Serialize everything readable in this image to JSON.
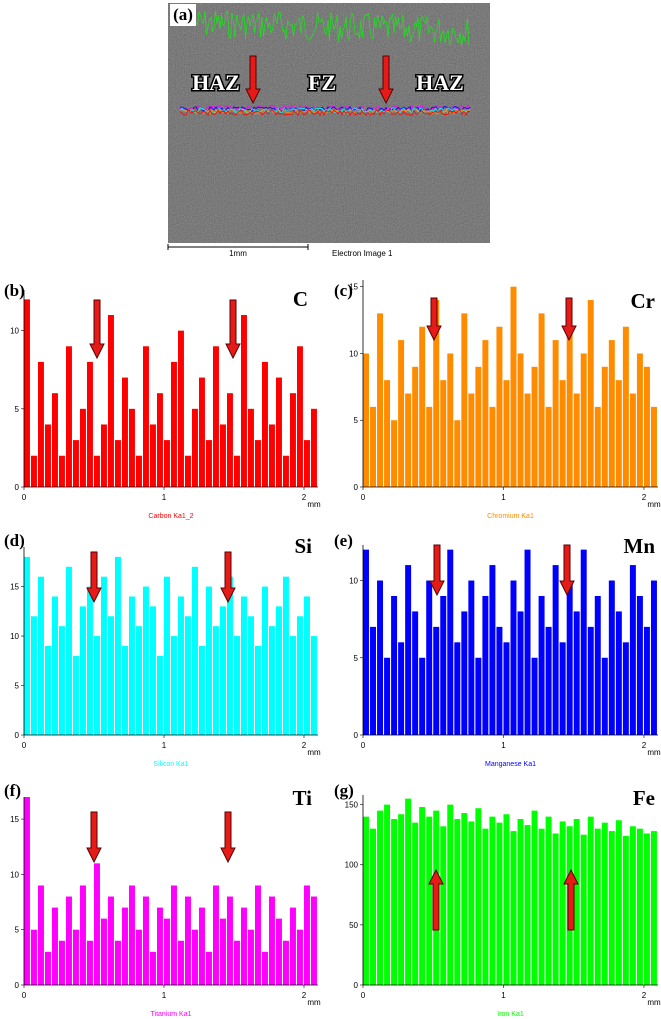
{
  "image": {
    "label": "(a)",
    "zones": [
      "HAZ",
      "FZ",
      "HAZ"
    ],
    "scale_bar": "1mm",
    "caption": "Electron Image 1"
  },
  "chart_data": [
    {
      "type": "bar",
      "panel_label": "(b)",
      "title": "C",
      "xlabel": "mm",
      "xlim": [
        0,
        2.1
      ],
      "xticks": [
        0,
        1,
        2
      ],
      "ylim": [
        0,
        12.6
      ],
      "yticks": [
        0,
        5,
        10
      ],
      "x": [
        0,
        0.05,
        0.1,
        0.15,
        0.2,
        0.25,
        0.3,
        0.35,
        0.4,
        0.45,
        0.5,
        0.55,
        0.6,
        0.65,
        0.7,
        0.75,
        0.8,
        0.85,
        0.9,
        0.95,
        1,
        1.05,
        1.1,
        1.15,
        1.2,
        1.25,
        1.3,
        1.35,
        1.4,
        1.45,
        1.5,
        1.55,
        1.6,
        1.65,
        1.7,
        1.75,
        1.8,
        1.85,
        1.9,
        1.95,
        2,
        2.05
      ],
      "series": [
        {
          "name": "Carbon Ka1_2",
          "color": "#ff0000",
          "values": [
            12,
            2,
            8,
            4,
            6,
            2,
            9,
            3,
            5,
            8,
            2,
            4,
            11,
            3,
            7,
            5,
            2,
            9,
            4,
            6,
            3,
            8,
            10,
            2,
            5,
            7,
            3,
            9,
            4,
            6,
            2,
            11,
            5,
            3,
            8,
            4,
            7,
            2,
            6,
            9,
            3,
            5
          ]
        }
      ]
    },
    {
      "type": "bar",
      "panel_label": "(c)",
      "title": "Cr",
      "xlabel": "mm",
      "xlim": [
        0,
        2.1
      ],
      "xticks": [
        0,
        1,
        2
      ],
      "ylim": [
        0,
        15.5
      ],
      "yticks": [
        0,
        5,
        10,
        15
      ],
      "x": [
        0,
        0.05,
        0.1,
        0.15,
        0.2,
        0.25,
        0.3,
        0.35,
        0.4,
        0.45,
        0.5,
        0.55,
        0.6,
        0.65,
        0.7,
        0.75,
        0.8,
        0.85,
        0.9,
        0.95,
        1,
        1.05,
        1.1,
        1.15,
        1.2,
        1.25,
        1.3,
        1.35,
        1.4,
        1.45,
        1.5,
        1.55,
        1.6,
        1.65,
        1.7,
        1.75,
        1.8,
        1.85,
        1.9,
        1.95,
        2,
        2.05
      ],
      "series": [
        {
          "name": "Chromium Ka1",
          "color": "#ff8c00",
          "values": [
            10,
            6,
            13,
            8,
            5,
            11,
            7,
            9,
            12,
            6,
            14,
            8,
            10,
            5,
            13,
            7,
            9,
            11,
            6,
            12,
            8,
            15,
            10,
            7,
            9,
            13,
            6,
            11,
            8,
            12,
            7,
            10,
            14,
            6,
            9,
            11,
            8,
            12,
            7,
            10,
            9,
            6
          ]
        }
      ]
    },
    {
      "type": "bar",
      "panel_label": "(d)",
      "title": "Si",
      "xlabel": "mm",
      "xlim": [
        0,
        2.1
      ],
      "xticks": [
        0,
        1,
        2
      ],
      "ylim": [
        0,
        19
      ],
      "yticks": [
        0,
        5,
        10,
        15
      ],
      "x": [
        0,
        0.05,
        0.1,
        0.15,
        0.2,
        0.25,
        0.3,
        0.35,
        0.4,
        0.45,
        0.5,
        0.55,
        0.6,
        0.65,
        0.7,
        0.75,
        0.8,
        0.85,
        0.9,
        0.95,
        1,
        1.05,
        1.1,
        1.15,
        1.2,
        1.25,
        1.3,
        1.35,
        1.4,
        1.45,
        1.5,
        1.55,
        1.6,
        1.65,
        1.7,
        1.75,
        1.8,
        1.85,
        1.9,
        1.95,
        2,
        2.05
      ],
      "series": [
        {
          "name": "Silicon Ka1",
          "color": "#00ffff",
          "values": [
            18,
            12,
            16,
            9,
            14,
            11,
            17,
            8,
            13,
            15,
            10,
            16,
            12,
            18,
            9,
            14,
            11,
            15,
            13,
            8,
            16,
            10,
            14,
            12,
            17,
            9,
            15,
            11,
            13,
            16,
            10,
            14,
            12,
            9,
            15,
            11,
            13,
            16,
            10,
            12,
            14,
            10
          ]
        }
      ]
    },
    {
      "type": "bar",
      "panel_label": "(e)",
      "title": "Mn",
      "xlabel": "mm",
      "xlim": [
        0,
        2.1
      ],
      "xticks": [
        0,
        1,
        2
      ],
      "ylim": [
        0,
        12.3
      ],
      "yticks": [
        0,
        5,
        10
      ],
      "x": [
        0,
        0.05,
        0.1,
        0.15,
        0.2,
        0.25,
        0.3,
        0.35,
        0.4,
        0.45,
        0.5,
        0.55,
        0.6,
        0.65,
        0.7,
        0.75,
        0.8,
        0.85,
        0.9,
        0.95,
        1,
        1.05,
        1.1,
        1.15,
        1.2,
        1.25,
        1.3,
        1.35,
        1.4,
        1.45,
        1.5,
        1.55,
        1.6,
        1.65,
        1.7,
        1.75,
        1.8,
        1.85,
        1.9,
        1.95,
        2,
        2.05
      ],
      "series": [
        {
          "name": "Manganese Ka1",
          "color": "#0000ff",
          "values": [
            12,
            7,
            10,
            5,
            9,
            6,
            11,
            8,
            5,
            10,
            7,
            9,
            12,
            6,
            8,
            10,
            5,
            9,
            11,
            7,
            6,
            10,
            8,
            12,
            5,
            9,
            7,
            11,
            6,
            10,
            8,
            12,
            7,
            9,
            5,
            10,
            8,
            6,
            11,
            9,
            7,
            10
          ]
        }
      ]
    },
    {
      "type": "bar",
      "panel_label": "(f)",
      "title": "Ti",
      "xlabel": "mm",
      "xlim": [
        0,
        2.1
      ],
      "xticks": [
        0,
        1,
        2
      ],
      "ylim": [
        0,
        17
      ],
      "yticks": [
        0,
        5,
        10,
        15
      ],
      "x": [
        0,
        0.05,
        0.1,
        0.15,
        0.2,
        0.25,
        0.3,
        0.35,
        0.4,
        0.45,
        0.5,
        0.55,
        0.6,
        0.65,
        0.7,
        0.75,
        0.8,
        0.85,
        0.9,
        0.95,
        1,
        1.05,
        1.1,
        1.15,
        1.2,
        1.25,
        1.3,
        1.35,
        1.4,
        1.45,
        1.5,
        1.55,
        1.6,
        1.65,
        1.7,
        1.75,
        1.8,
        1.85,
        1.9,
        1.95,
        2,
        2.05
      ],
      "series": [
        {
          "name": "Titanium Ka1",
          "color": "#ff00ff",
          "values": [
            17,
            5,
            9,
            3,
            7,
            4,
            8,
            5,
            9,
            4,
            11,
            6,
            8,
            4,
            7,
            9,
            5,
            8,
            3,
            7,
            6,
            9,
            4,
            8,
            5,
            7,
            3,
            9,
            6,
            8,
            4,
            7,
            5,
            9,
            3,
            8,
            6,
            4,
            7,
            5,
            9,
            8
          ]
        }
      ]
    },
    {
      "type": "bar",
      "panel_label": "(g)",
      "title": "Fe",
      "xlabel": "mm",
      "xlim": [
        0,
        2.1
      ],
      "xticks": [
        0,
        1,
        2
      ],
      "ylim": [
        0,
        158
      ],
      "yticks": [
        0,
        50,
        100,
        150
      ],
      "x": [
        0,
        0.05,
        0.1,
        0.15,
        0.2,
        0.25,
        0.3,
        0.35,
        0.4,
        0.45,
        0.5,
        0.55,
        0.6,
        0.65,
        0.7,
        0.75,
        0.8,
        0.85,
        0.9,
        0.95,
        1,
        1.05,
        1.1,
        1.15,
        1.2,
        1.25,
        1.3,
        1.35,
        1.4,
        1.45,
        1.5,
        1.55,
        1.6,
        1.65,
        1.7,
        1.75,
        1.8,
        1.85,
        1.9,
        1.95,
        2,
        2.05
      ],
      "series": [
        {
          "name": "Iron Ka1",
          "color": "#00ff00",
          "values": [
            140,
            130,
            145,
            150,
            138,
            142,
            155,
            135,
            148,
            140,
            145,
            132,
            150,
            138,
            143,
            136,
            147,
            130,
            140,
            135,
            142,
            128,
            138,
            133,
            145,
            130,
            140,
            126,
            136,
            132,
            138,
            125,
            140,
            130,
            135,
            128,
            137,
            124,
            132,
            130,
            126,
            128
          ]
        }
      ]
    }
  ]
}
